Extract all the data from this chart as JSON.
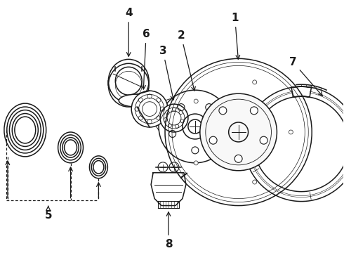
{
  "background_color": "#ffffff",
  "line_color": "#1a1a1a",
  "figsize": [
    4.9,
    3.6
  ],
  "dpi": 100,
  "label_positions": {
    "1": [
      330,
      28,
      330,
      78
    ],
    "2": [
      258,
      55,
      258,
      95
    ],
    "3": [
      228,
      75,
      228,
      105
    ],
    "4": [
      183,
      18,
      183,
      48
    ],
    "5": [
      68,
      318,
      68,
      295
    ],
    "6": [
      205,
      52,
      205,
      72
    ],
    "7": [
      415,
      95,
      405,
      120
    ],
    "8": [
      225,
      345,
      225,
      320
    ]
  }
}
